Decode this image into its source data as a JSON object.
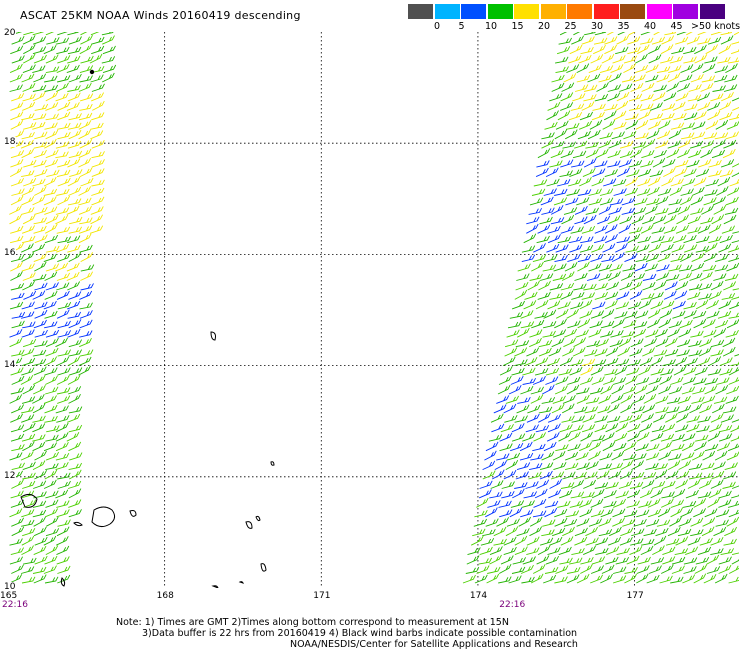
{
  "title": "ASCAT 25KM NOAA Winds 20160419 descending",
  "colorbar": {
    "colors": [
      "#505050",
      "#00b4ff",
      "#0050ff",
      "#00c000",
      "#ffe000",
      "#ffb000",
      "#ff7a00",
      "#ff1e1e",
      "#9a4a10",
      "#ff00ff",
      "#a000e0",
      "#4a0080"
    ],
    "labels": [
      "0",
      "5",
      "10",
      "15",
      "20",
      "25",
      "30",
      "35",
      "40",
      "45",
      ">50 knots"
    ]
  },
  "map": {
    "lon_range": [
      165,
      179
    ],
    "lat_range": [
      10,
      20
    ],
    "lat_ticks": [
      "20",
      "18",
      "16",
      "14",
      "12",
      "10"
    ],
    "lon_ticks": [
      "165",
      "168",
      "171",
      "174",
      "177"
    ],
    "times": [
      {
        "label": "22:16",
        "lon": 165.2
      },
      {
        "label": "22:16",
        "lon": 174.6
      }
    ]
  },
  "notes": {
    "line1": "Note: 1) Times are GMT 2)Times along bottom correspond to measurement at 15N",
    "line2": "3)Data buffer is 22 hrs from 20160419 4) Black wind barbs indicate possible contamination",
    "line3": "NOAA/NESDIS/Center for Satellite Applications and Research"
  }
}
